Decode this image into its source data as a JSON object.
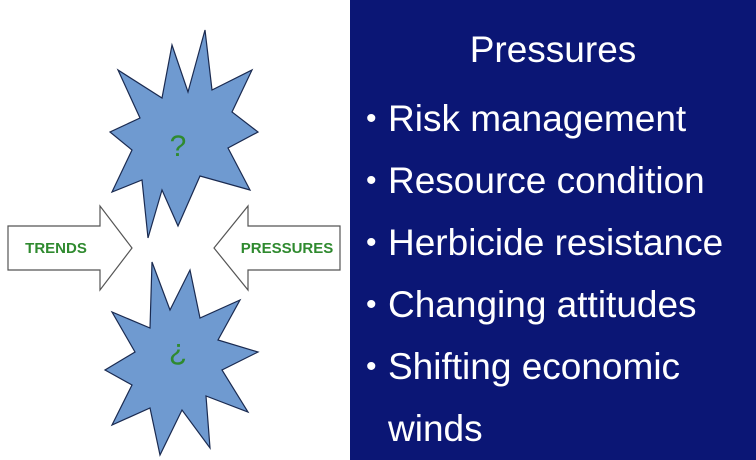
{
  "diagram": {
    "top_burst": {
      "label": "?"
    },
    "bottom_burst": {
      "label": "?"
    },
    "left_arrow": {
      "label": "TRENDS"
    },
    "right_arrow": {
      "label": "PRESSURES"
    }
  },
  "panel": {
    "title": "Pressures",
    "bullets": [
      "Risk management",
      "Resource condition",
      "Herbicide resistance",
      "Changing attitudes",
      "Shifting economic winds"
    ]
  }
}
